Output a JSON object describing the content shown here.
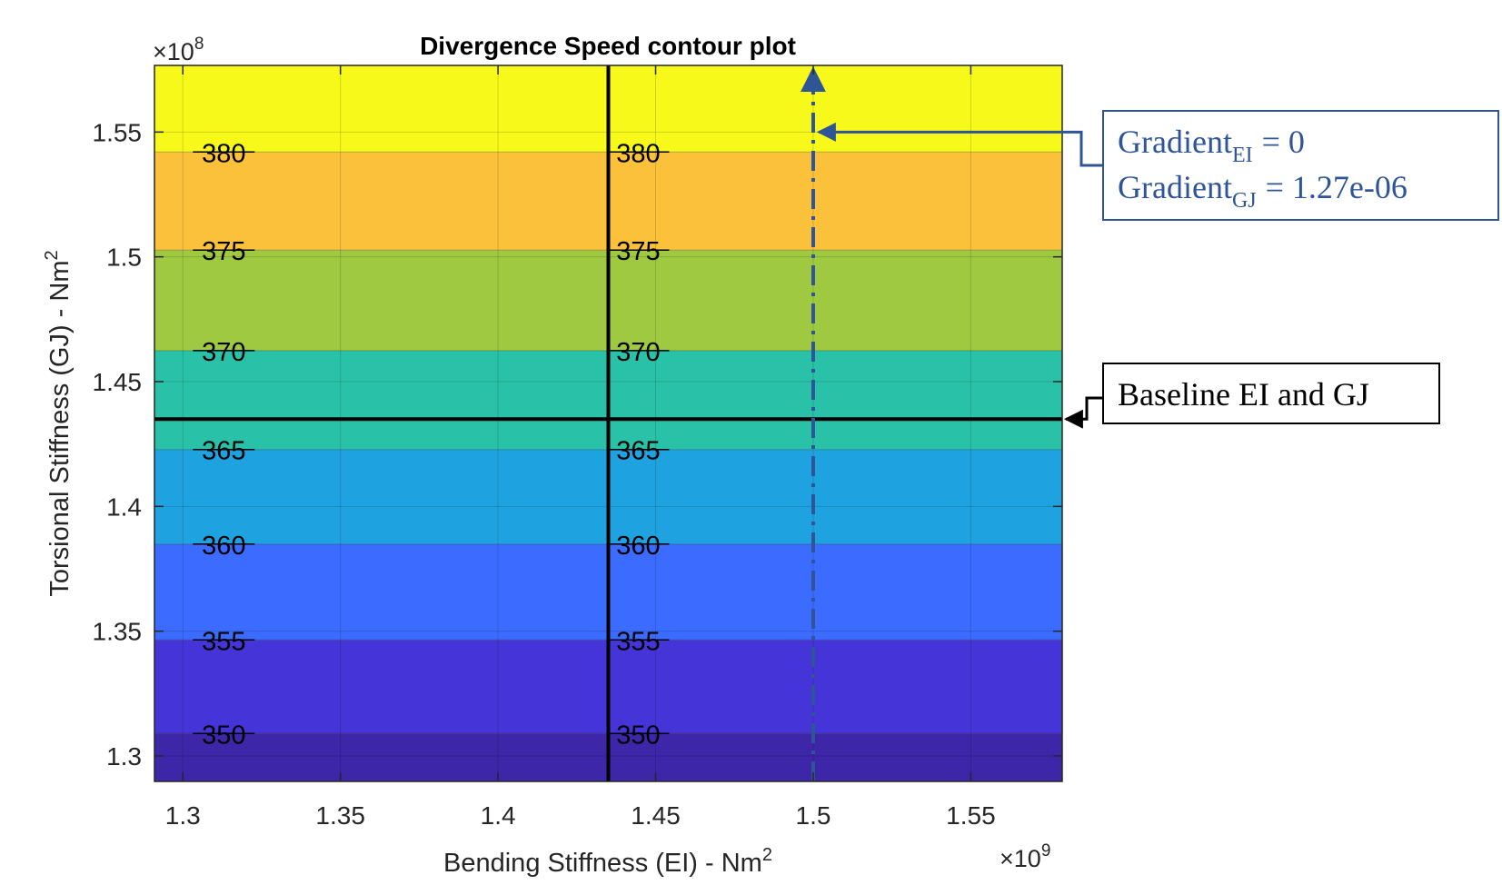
{
  "chart_data": {
    "type": "heatmap",
    "subtype": "filled-contour",
    "title": "Divergence Speed contour plot",
    "xlabel": "Bending Stiffness (EI) - Nm",
    "xlabel_sup": "2",
    "ylabel": "Torsional Stiffness (GJ) - Nm",
    "ylabel_sup": "2",
    "x_exponent_prefix": "×10",
    "x_exponent": "9",
    "y_exponent_prefix": "×10",
    "y_exponent": "8",
    "xlim": [
      1.291,
      1.579
    ],
    "ylim": [
      1.2898,
      1.5767
    ],
    "x_ticks": [
      1.3,
      1.35,
      1.4,
      1.45,
      1.5,
      1.55
    ],
    "x_tick_labels": [
      "1.3",
      "1.35",
      "1.4",
      "1.45",
      "1.5",
      "1.55"
    ],
    "y_ticks": [
      1.3,
      1.35,
      1.4,
      1.45,
      1.5,
      1.55
    ],
    "y_tick_labels": [
      "1.3",
      "1.35",
      "1.4",
      "1.45",
      "1.5",
      "1.55"
    ],
    "grid": true,
    "bands": [
      {
        "y_from": 1.2898,
        "y_to": 1.309,
        "color": "#3e26a8"
      },
      {
        "y_from": 1.309,
        "y_to": 1.3465,
        "color": "#4535d8"
      },
      {
        "y_from": 1.3465,
        "y_to": 1.3849,
        "color": "#3b6cff"
      },
      {
        "y_from": 1.3849,
        "y_to": 1.4228,
        "color": "#1fa3e0"
      },
      {
        "y_from": 1.4228,
        "y_to": 1.4624,
        "color": "#29c2a8"
      },
      {
        "y_from": 1.4624,
        "y_to": 1.5027,
        "color": "#9fc940"
      },
      {
        "y_from": 1.5027,
        "y_to": 1.542,
        "color": "#fbc13a"
      },
      {
        "y_from": 1.542,
        "y_to": 1.5767,
        "color": "#f6f91a"
      }
    ],
    "contour_levels": [
      {
        "label": "350",
        "y": 1.309
      },
      {
        "label": "355",
        "y": 1.3465
      },
      {
        "label": "360",
        "y": 1.3849
      },
      {
        "label": "365",
        "y": 1.4228
      },
      {
        "label": "370",
        "y": 1.4624
      },
      {
        "label": "375",
        "y": 1.5027
      },
      {
        "label": "380",
        "y": 1.542
      }
    ],
    "label_columns_x": [
      1.313,
      1.4445
    ],
    "baseline": {
      "x": 1.435,
      "y": 1.435
    },
    "gradient_line_x": 1.5,
    "gradient_arrow_y": 1.55,
    "annotations": {
      "gradient_box": {
        "line1_prefix": "Gradient",
        "line1_sub": "EI",
        "line1_value": "= 0",
        "line2_prefix": "Gradient",
        "line2_sub": "GJ",
        "line2_value": "= 1.27e-06",
        "color": "#2f5597"
      },
      "baseline_box": {
        "text": "Baseline EI and GJ",
        "color": "#000000"
      }
    }
  }
}
